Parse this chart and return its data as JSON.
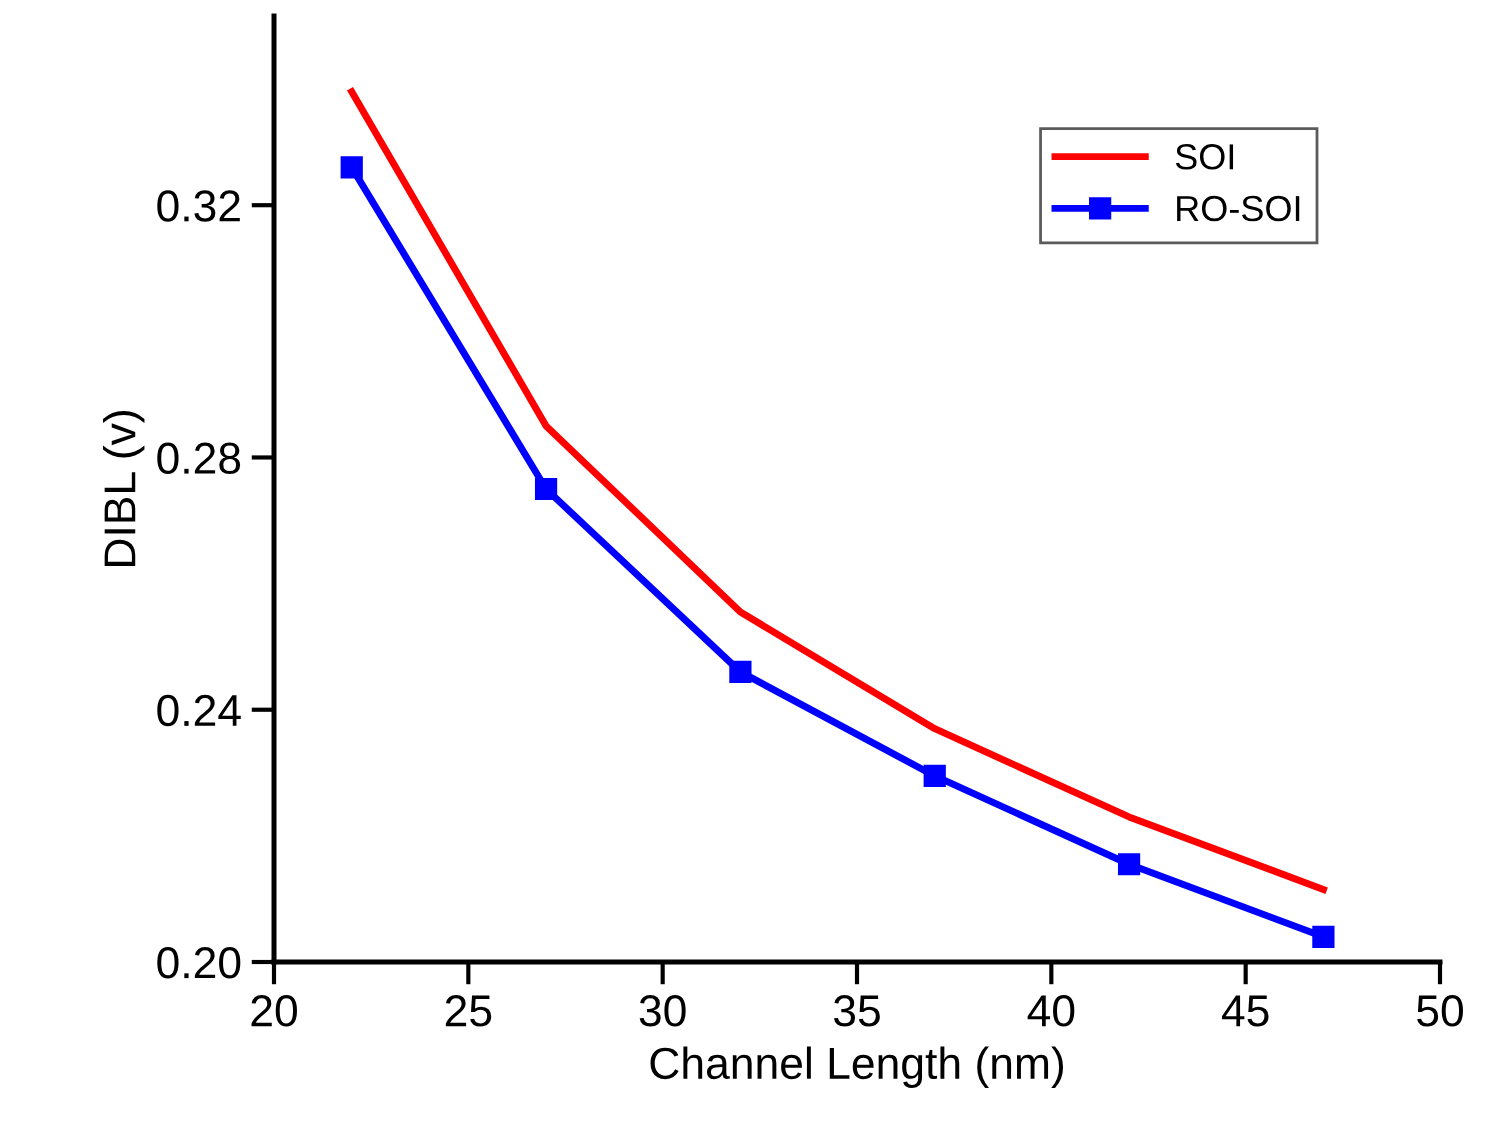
{
  "chart_data": {
    "type": "line",
    "xlabel": "Channel Length (nm)",
    "ylabel": "DIBL (v)",
    "xlim": [
      20,
      50
    ],
    "ylim": [
      0.2,
      0.35
    ],
    "xticks": [
      20,
      25,
      30,
      35,
      40,
      45,
      50
    ],
    "yticks": [
      {
        "value": 0.2,
        "label": "0.20"
      },
      {
        "value": 0.24,
        "label": "0.24"
      },
      {
        "value": 0.28,
        "label": "0.28"
      },
      {
        "value": 0.32,
        "label": "0.32"
      }
    ],
    "grid": false,
    "legend": "top right",
    "series": [
      {
        "name": "SOI",
        "color": "#ff0000",
        "marker": "none",
        "x": [
          22,
          27,
          32,
          37,
          42,
          47
        ],
        "values": [
          0.338,
          0.285,
          0.2555,
          0.237,
          0.223,
          0.2115
        ]
      },
      {
        "name": "RO-SOI",
        "color": "#0000ff",
        "marker": "square",
        "x": [
          22,
          27,
          32,
          37,
          42,
          47
        ],
        "values": [
          0.326,
          0.275,
          0.246,
          0.2295,
          0.2155,
          0.204
        ]
      }
    ]
  }
}
